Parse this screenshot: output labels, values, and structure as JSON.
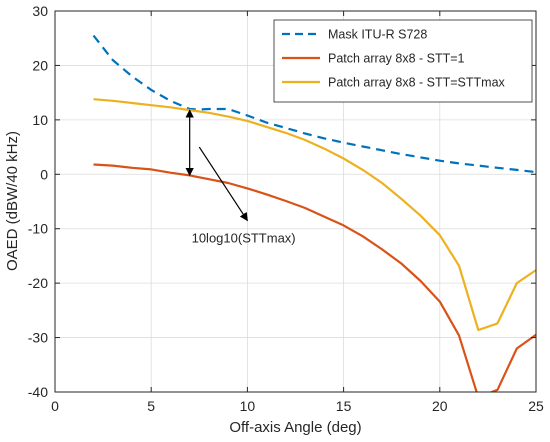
{
  "chart_data": {
    "type": "line",
    "xlabel": "Off-axis Angle (deg)",
    "ylabel": "OAED (dBW/40 kHz)",
    "xlim": [
      0,
      25
    ],
    "ylim": [
      -40,
      30
    ],
    "xticks": [
      0,
      5,
      10,
      15,
      20,
      25
    ],
    "yticks": [
      -40,
      -30,
      -20,
      -10,
      0,
      10,
      20,
      30
    ],
    "grid": true,
    "legend_position": "top-right",
    "series": [
      {
        "name": "Mask ITU-R S728",
        "color": "#0072BD",
        "style": "dashed",
        "x": [
          2,
          3,
          4,
          5,
          6,
          7,
          7.5,
          8,
          9,
          10,
          11,
          12,
          13,
          14,
          15,
          16,
          17,
          18,
          19,
          20,
          21,
          22,
          23,
          24,
          25
        ],
        "y": [
          25.5,
          21,
          18,
          15.5,
          13.5,
          12,
          11.9,
          12,
          12,
          10.8,
          9.5,
          8.5,
          7.5,
          6.6,
          5.8,
          5.1,
          4.4,
          3.7,
          3.1,
          2.5,
          2,
          1.6,
          1.2,
          0.8,
          0.4
        ]
      },
      {
        "name": "Patch array 8x8 - STT=1",
        "color": "#D95319",
        "style": "solid",
        "x": [
          2,
          3,
          4,
          5,
          6,
          7,
          8,
          9,
          10,
          11,
          12,
          13,
          14,
          15,
          16,
          17,
          18,
          19,
          20,
          21,
          22,
          23,
          24,
          25
        ],
        "y": [
          1.8,
          1.6,
          1.2,
          0.9,
          0.3,
          -0.2,
          -0.9,
          -1.6,
          -2.6,
          -3.7,
          -4.9,
          -6.2,
          -7.8,
          -9.4,
          -11.4,
          -13.8,
          -16.4,
          -19.6,
          -23.4,
          -29.6,
          -41,
          -39.6,
          -32,
          -29.5
        ]
      },
      {
        "name": "Patch array 8x8 - STT=STTmax",
        "color": "#EDB120",
        "style": "solid",
        "x": [
          2,
          3,
          4,
          5,
          6,
          7,
          8,
          9,
          10,
          11,
          12,
          13,
          14,
          15,
          16,
          17,
          18,
          19,
          20,
          21,
          22,
          23,
          24,
          25
        ],
        "y": [
          13.8,
          13.5,
          13.1,
          12.7,
          12.3,
          11.8,
          11.3,
          10.6,
          9.8,
          8.7,
          7.6,
          6.3,
          4.7,
          2.9,
          0.8,
          -1.6,
          -4.5,
          -7.6,
          -11.2,
          -16.8,
          -28.6,
          -27.4,
          -20,
          -17.6
        ]
      }
    ],
    "annotations": [
      {
        "text": "10log10(STTmax)",
        "x": 7.1,
        "y": -12.5
      }
    ],
    "double_arrow": {
      "x": 7,
      "y1": 11.8,
      "y2": -0.2
    },
    "pointer_arrow": {
      "x1": 7.5,
      "y1": 5,
      "x2": 10,
      "y2": -8.5
    }
  }
}
